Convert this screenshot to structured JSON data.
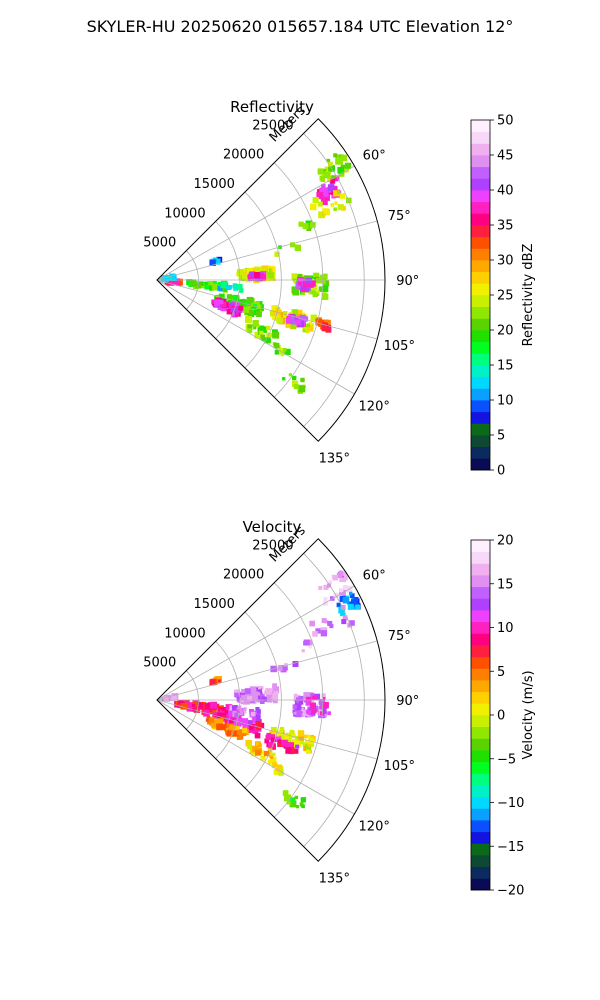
{
  "figure": {
    "title": "SKYLER-HU  20250620  015657.184 UTC Elevation 12°"
  },
  "chart_data": [
    {
      "type": "heatmap",
      "projection": "polar-sector",
      "title": "Reflectivity",
      "radial_axis_label": "Meters",
      "radial_ticks": [
        5000,
        10000,
        15000,
        20000,
        25000
      ],
      "radial_tick_labels": [
        "5000",
        "10000",
        "15000",
        "20000",
        "25000"
      ],
      "rlim": [
        0,
        27500
      ],
      "angle_ticks": [
        60,
        75,
        90,
        105,
        120,
        135
      ],
      "angle_tick_labels": [
        "60°",
        "75°",
        "90°",
        "105°",
        "120°",
        "135°"
      ],
      "angle_range_deg": [
        45,
        135
      ],
      "grid": true,
      "colorbar": {
        "label": "Reflectivity dBZ",
        "min": 0,
        "max": 50,
        "ticks": [
          0,
          5,
          10,
          15,
          20,
          25,
          30,
          35,
          40,
          45,
          50
        ],
        "tick_labels": [
          "0",
          "5",
          "10",
          "15",
          "20",
          "25",
          "30",
          "35",
          "40",
          "45",
          "50"
        ],
        "colors": [
          "#0a0a55",
          "#0b2a5e",
          "#0e4a33",
          "#0a6a1a",
          "#1414e0",
          "#0a50ff",
          "#0aa0ff",
          "#00d8ff",
          "#00f0c8",
          "#00ff7f",
          "#00ff20",
          "#20e000",
          "#5ad400",
          "#90e800",
          "#c8f000",
          "#f0f000",
          "#ffd000",
          "#ffa800",
          "#ff8000",
          "#ff5000",
          "#ff2040",
          "#ff0080",
          "#ff20c0",
          "#ee40ff",
          "#b040ff",
          "#c060ff",
          "#e090f0",
          "#f0b0f0",
          "#f8d8f8",
          "#fff0ff"
        ]
      },
      "cells": [
        {
          "r": 25500,
          "th": 58,
          "v": 22,
          "n": 30,
          "dr": 2200,
          "dth": 3
        },
        {
          "r": 23500,
          "th": 63,
          "v": 38,
          "n": 26,
          "dr": 1500,
          "dth": 2.5
        },
        {
          "r": 23000,
          "th": 66,
          "v": 25,
          "n": 16,
          "dr": 2500,
          "dth": 3
        },
        {
          "r": 19000,
          "th": 70,
          "v": 22,
          "n": 6,
          "dr": 1000,
          "dth": 1.5
        },
        {
          "r": 16000,
          "th": 76,
          "v": 22,
          "n": 6,
          "dr": 1500,
          "dth": 2
        },
        {
          "r": 7500,
          "th": 72,
          "v": 10,
          "n": 6,
          "dr": 500,
          "dth": 1.2
        },
        {
          "r": 12000,
          "th": 87,
          "v": 25,
          "n": 60,
          "dr": 2200,
          "dth": 3
        },
        {
          "r": 12000,
          "th": 88,
          "v": 38,
          "n": 28,
          "dr": 900,
          "dth": 1.5
        },
        {
          "r": 18500,
          "th": 92,
          "v": 22,
          "n": 60,
          "dr": 2000,
          "dth": 4
        },
        {
          "r": 18000,
          "th": 92,
          "v": 40,
          "n": 30,
          "dr": 900,
          "dth": 2
        },
        {
          "r": 6000,
          "th": 96,
          "v": 20,
          "n": 40,
          "dr": 2500,
          "dth": 3
        },
        {
          "r": 9000,
          "th": 96,
          "v": 14,
          "n": 14,
          "dr": 1500,
          "dth": 2
        },
        {
          "r": 10000,
          "th": 106,
          "v": 20,
          "n": 60,
          "dr": 3000,
          "dth": 4
        },
        {
          "r": 9000,
          "th": 111,
          "v": 38,
          "n": 45,
          "dr": 1800,
          "dth": 3
        },
        {
          "r": 17000,
          "th": 106,
          "v": 26,
          "n": 60,
          "dr": 2500,
          "dth": 3
        },
        {
          "r": 17500,
          "th": 106,
          "v": 40,
          "n": 30,
          "dr": 1100,
          "dth": 1.5
        },
        {
          "r": 21000,
          "th": 105,
          "v": 33,
          "n": 20,
          "dr": 1000,
          "dth": 1.2
        },
        {
          "r": 14000,
          "th": 116,
          "v": 22,
          "n": 24,
          "dr": 2000,
          "dth": 3
        },
        {
          "r": 17000,
          "th": 120,
          "v": 22,
          "n": 8,
          "dr": 1000,
          "dth": 1.5
        },
        {
          "r": 20500,
          "th": 126,
          "v": 22,
          "n": 10,
          "dr": 1500,
          "dth": 2
        },
        {
          "r": 2000,
          "th": 98,
          "v": 35,
          "n": 12,
          "dr": 800,
          "dth": 4
        },
        {
          "r": 1500,
          "th": 80,
          "v": 12,
          "n": 14,
          "dr": 800,
          "dth": 5
        }
      ]
    },
    {
      "type": "heatmap",
      "projection": "polar-sector",
      "title": "Velocity",
      "radial_axis_label": "Meters",
      "radial_ticks": [
        5000,
        10000,
        15000,
        20000,
        25000
      ],
      "radial_tick_labels": [
        "5000",
        "10000",
        "15000",
        "20000",
        "25000"
      ],
      "rlim": [
        0,
        27500
      ],
      "angle_ticks": [
        60,
        75,
        90,
        105,
        120,
        135
      ],
      "angle_tick_labels": [
        "60°",
        "75°",
        "90°",
        "105°",
        "120°",
        "135°"
      ],
      "angle_range_deg": [
        45,
        135
      ],
      "grid": true,
      "colorbar": {
        "label": "Velocity (m/s)",
        "min": -20,
        "max": 20,
        "ticks": [
          -20,
          -15,
          -10,
          -5,
          0,
          5,
          10,
          15,
          20
        ],
        "tick_labels": [
          "−20",
          "−15",
          "−10",
          "−5",
          "0",
          "5",
          "10",
          "15",
          "20"
        ],
        "colors": [
          "#0a0a55",
          "#0b2a5e",
          "#0e4a33",
          "#0a6a1a",
          "#1414e0",
          "#0a50ff",
          "#0aa0ff",
          "#00d8ff",
          "#00f0c8",
          "#00ff7f",
          "#00ff20",
          "#20e000",
          "#5ad400",
          "#90e800",
          "#c8f000",
          "#f0f000",
          "#ffd000",
          "#ffa800",
          "#ff8000",
          "#ff5000",
          "#ff2040",
          "#ff0080",
          "#ff20c0",
          "#ee40ff",
          "#b040ff",
          "#c060ff",
          "#e090f0",
          "#f0b0f0",
          "#f8d8f8",
          "#fff0ff"
        ]
      },
      "cells": [
        {
          "r": 25500,
          "th": 58,
          "v": 16,
          "n": 26,
          "dr": 2200,
          "dth": 3
        },
        {
          "r": 25800,
          "th": 63,
          "v": -12,
          "n": 20,
          "dr": 1200,
          "dth": 2.5
        },
        {
          "r": 23000,
          "th": 66,
          "v": 15,
          "n": 14,
          "dr": 2500,
          "dth": 3
        },
        {
          "r": 19000,
          "th": 70,
          "v": 15,
          "n": 6,
          "dr": 1000,
          "dth": 1.5
        },
        {
          "r": 16000,
          "th": 76,
          "v": 15,
          "n": 6,
          "dr": 1500,
          "dth": 2
        },
        {
          "r": 7500,
          "th": 72,
          "v": 5,
          "n": 5,
          "dr": 500,
          "dth": 1.2
        },
        {
          "r": 12000,
          "th": 87,
          "v": 15,
          "n": 70,
          "dr": 2500,
          "dth": 4
        },
        {
          "r": 18500,
          "th": 92,
          "v": 15,
          "n": 60,
          "dr": 2000,
          "dth": 4
        },
        {
          "r": 19500,
          "th": 92,
          "v": 11,
          "n": 14,
          "dr": 1500,
          "dth": 3
        },
        {
          "r": 6000,
          "th": 100,
          "v": 8,
          "n": 70,
          "dr": 3500,
          "dth": 5
        },
        {
          "r": 10000,
          "th": 106,
          "v": 10,
          "n": 60,
          "dr": 3000,
          "dth": 4
        },
        {
          "r": 9000,
          "th": 112,
          "v": 4,
          "n": 50,
          "dr": 2500,
          "dth": 3
        },
        {
          "r": 11000,
          "th": 98,
          "v": 14,
          "n": 30,
          "dr": 2000,
          "dth": 3
        },
        {
          "r": 17000,
          "th": 106,
          "v": 1,
          "n": 50,
          "dr": 2500,
          "dth": 3
        },
        {
          "r": 16000,
          "th": 110,
          "v": 10,
          "n": 25,
          "dr": 2000,
          "dth": 2.5
        },
        {
          "r": 14000,
          "th": 116,
          "v": 2,
          "n": 24,
          "dr": 2000,
          "dth": 3
        },
        {
          "r": 17000,
          "th": 120,
          "v": 0,
          "n": 8,
          "dr": 1000,
          "dth": 1.5
        },
        {
          "r": 20500,
          "th": 126,
          "v": -4,
          "n": 10,
          "dr": 1500,
          "dth": 2
        },
        {
          "r": 1500,
          "th": 82,
          "v": 15,
          "n": 14,
          "dr": 800,
          "dth": 5
        }
      ]
    }
  ]
}
